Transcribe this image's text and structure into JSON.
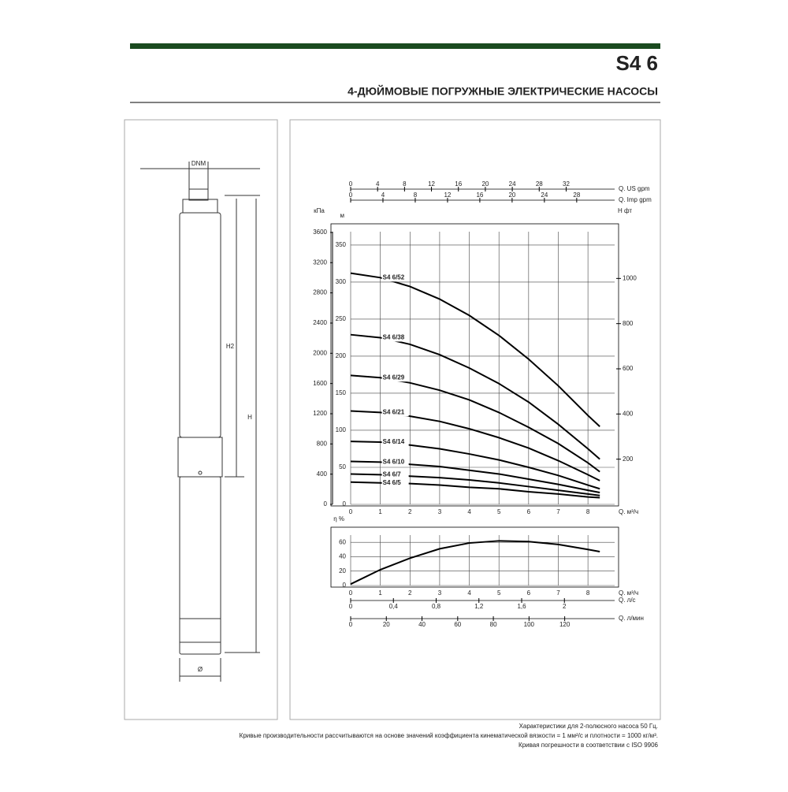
{
  "header": {
    "model": "S4 6",
    "subtitle": "4-ДЮЙМОВЫЕ ПОГРУЖНЫЕ ЭЛЕКТРИЧЕСКИЕ НАСОСЫ"
  },
  "drawing": {
    "dnm": "DNM",
    "h2": "H2",
    "h": "H",
    "diameter": "Ø"
  },
  "footer": [
    "Характеристики для 2-полюсного насоса 50 Гц.",
    "Кривые производительности рассчитываются на основе значений коэффициента кинематической вязкости = 1 мм²/с и плотности = 1000 кг/м³.",
    "Кривая погрешности в соответствии с ISO 9906"
  ],
  "chart_data": [
    {
      "type": "line",
      "x_label": "Q. м³/ч",
      "y_label": "м",
      "y3_label": "кПа",
      "y2_label": "H фт",
      "x": [
        0,
        1,
        2,
        3,
        4,
        5,
        6,
        7,
        8,
        8.4
      ],
      "xlim": [
        0,
        8.9
      ],
      "xticks": [
        0,
        1,
        2,
        3,
        4,
        5,
        6,
        7,
        8
      ],
      "ylim": [
        0,
        368
      ],
      "yticks": [
        0,
        50,
        100,
        150,
        200,
        250,
        300,
        350
      ],
      "y3lim": [
        0,
        3610
      ],
      "y3ticks": [
        0,
        400,
        800,
        1200,
        1600,
        2000,
        2400,
        2800,
        3200,
        3600
      ],
      "y2lim": [
        0,
        1207
      ],
      "y2ticks": [
        200,
        400,
        600,
        800,
        1000
      ],
      "top_axes": [
        {
          "label": "Q. US gpm",
          "xlim": [
            0,
            39.2
          ],
          "xticks": [
            0,
            4,
            8,
            12,
            16,
            20,
            24,
            28,
            32
          ]
        },
        {
          "label": "Q. Imp gpm",
          "xlim": [
            0,
            32.7
          ],
          "xticks": [
            0,
            4,
            8,
            12,
            16,
            20,
            24,
            28
          ]
        }
      ],
      "grid": true,
      "series": [
        {
          "name": "S4 6/52",
          "color": "#000000",
          "values": [
            312,
            306,
            294,
            277,
            255,
            228,
            196,
            160,
            120,
            105
          ]
        },
        {
          "name": "S4 6/38",
          "color": "#000000",
          "values": [
            229,
            225,
            216,
            202,
            184,
            163,
            138,
            108,
            75,
            61
          ]
        },
        {
          "name": "S4 6/29",
          "color": "#000000",
          "values": [
            174,
            171,
            164,
            154,
            141,
            124,
            104,
            82,
            56,
            44
          ]
        },
        {
          "name": "S4 6/21",
          "color": "#000000",
          "values": [
            126,
            124,
            119,
            112,
            102,
            90,
            76,
            59,
            40,
            32
          ]
        },
        {
          "name": "S4 6/14",
          "color": "#000000",
          "values": [
            85,
            84,
            80,
            75,
            68,
            60,
            50,
            39,
            26,
            21
          ]
        },
        {
          "name": "S4 6/10",
          "color": "#000000",
          "values": [
            58,
            57,
            54,
            51,
            46,
            41,
            34,
            27,
            19,
            16
          ]
        },
        {
          "name": "S4 6/7",
          "color": "#000000",
          "values": [
            41,
            40,
            38,
            36,
            33,
            29,
            24,
            19,
            14,
            12
          ]
        },
        {
          "name": "S4 6/5",
          "color": "#000000",
          "values": [
            30,
            29,
            28,
            26,
            23,
            21,
            17,
            14,
            10,
            9
          ]
        }
      ]
    },
    {
      "type": "line",
      "x_label": "Q. м³/ч",
      "y_label": "η %",
      "x": [
        0,
        1,
        2,
        3,
        4,
        5,
        6,
        7,
        8,
        8.4
      ],
      "xlim": [
        0,
        8.9
      ],
      "xticks": [
        0,
        1,
        2,
        3,
        4,
        5,
        6,
        7,
        8
      ],
      "ylim": [
        0,
        70
      ],
      "yticks": [
        0,
        20,
        40,
        60
      ],
      "grid": true,
      "bottom_axes": [
        {
          "label": "Q. л/с",
          "xlim": [
            0,
            2.47
          ],
          "xticks": [
            0,
            {
              "value": 0.4,
              "label": "0,4"
            },
            {
              "value": 0.8,
              "label": "0,8"
            },
            {
              "value": 1.2,
              "label": "1,2"
            },
            {
              "value": 1.6,
              "label": "1,6"
            },
            2
          ]
        },
        {
          "label": "Q. л/мин",
          "xlim": [
            0,
            148
          ],
          "xticks": [
            0,
            20,
            40,
            60,
            80,
            100,
            120
          ]
        }
      ],
      "series": [
        {
          "color": "#000000",
          "values": [
            2,
            22,
            38,
            51,
            59,
            62,
            61,
            57,
            50,
            47
          ]
        }
      ]
    }
  ]
}
